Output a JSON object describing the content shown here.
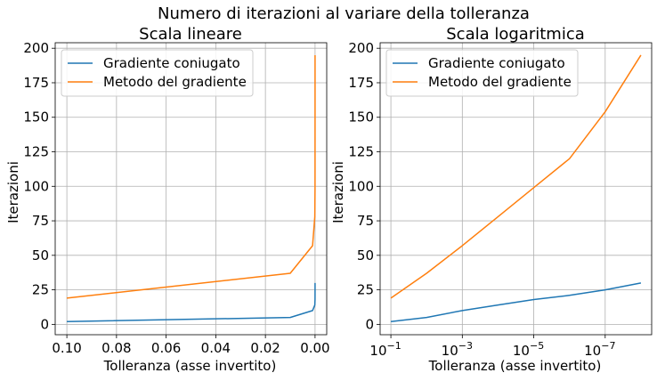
{
  "suptitle": "Numero di iterazioni al variare della tolleranza",
  "colors": {
    "cg": "#1f77b4",
    "gd": "#ff7f0e",
    "grid": "#b0b0b0",
    "axis": "#000000"
  },
  "chart_data": [
    {
      "type": "line",
      "title": "Scala lineare",
      "xlabel": "Tolleranza (asse invertito)",
      "ylabel": "Iterazioni",
      "xscale": "linear",
      "x_inverted": true,
      "xlim": [
        0.1047,
        -0.0047
      ],
      "ylim": [
        -7.5,
        204
      ],
      "grid": true,
      "legend_position": "upper left",
      "xticks": [
        0.1,
        0.08,
        0.06,
        0.04,
        0.02,
        0.0
      ],
      "xtick_labels": [
        "0.10",
        "0.08",
        "0.06",
        "0.04",
        "0.02",
        "0.00"
      ],
      "yticks": [
        0,
        25,
        50,
        75,
        100,
        125,
        150,
        175,
        200
      ],
      "ytick_labels": [
        "0",
        "25",
        "50",
        "75",
        "100",
        "125",
        "150",
        "175",
        "200"
      ],
      "x": [
        0.1,
        0.01,
        0.001,
        0.0001,
        1e-05,
        1e-06,
        1e-07,
        1e-08
      ],
      "series": [
        {
          "name": "Gradiente coniugato",
          "values": [
            2,
            5,
            10,
            14,
            18,
            21,
            25,
            30
          ]
        },
        {
          "name": "Metodo del gradiente",
          "values": [
            19,
            37,
            57,
            78,
            99,
            120,
            154,
            195
          ]
        }
      ]
    },
    {
      "type": "line",
      "title": "Scala logaritmica",
      "xlabel": "Tolleranza (asse invertito)",
      "ylabel": "Iterazioni",
      "xscale": "log",
      "x_inverted": true,
      "xlim": [
        0.2,
        5e-09
      ],
      "ylim": [
        -7.5,
        204
      ],
      "grid": true,
      "legend_position": "upper left",
      "xticks": [
        0.1,
        0.001,
        1e-05,
        1e-07
      ],
      "xtick_labels": [
        {
          "base": "10",
          "exp": "−1"
        },
        {
          "base": "10",
          "exp": "−3"
        },
        {
          "base": "10",
          "exp": "−5"
        },
        {
          "base": "10",
          "exp": "−7"
        }
      ],
      "yticks": [
        0,
        25,
        50,
        75,
        100,
        125,
        150,
        175,
        200
      ],
      "ytick_labels": [
        "0",
        "25",
        "50",
        "75",
        "100",
        "125",
        "150",
        "175",
        "200"
      ],
      "x": [
        0.1,
        0.01,
        0.001,
        0.0001,
        1e-05,
        1e-06,
        1e-07,
        1e-08
      ],
      "series": [
        {
          "name": "Gradiente coniugato",
          "values": [
            2,
            5,
            10,
            14,
            18,
            21,
            25,
            30
          ]
        },
        {
          "name": "Metodo del gradiente",
          "values": [
            19,
            37,
            57,
            78,
            99,
            120,
            154,
            195
          ]
        }
      ]
    }
  ]
}
